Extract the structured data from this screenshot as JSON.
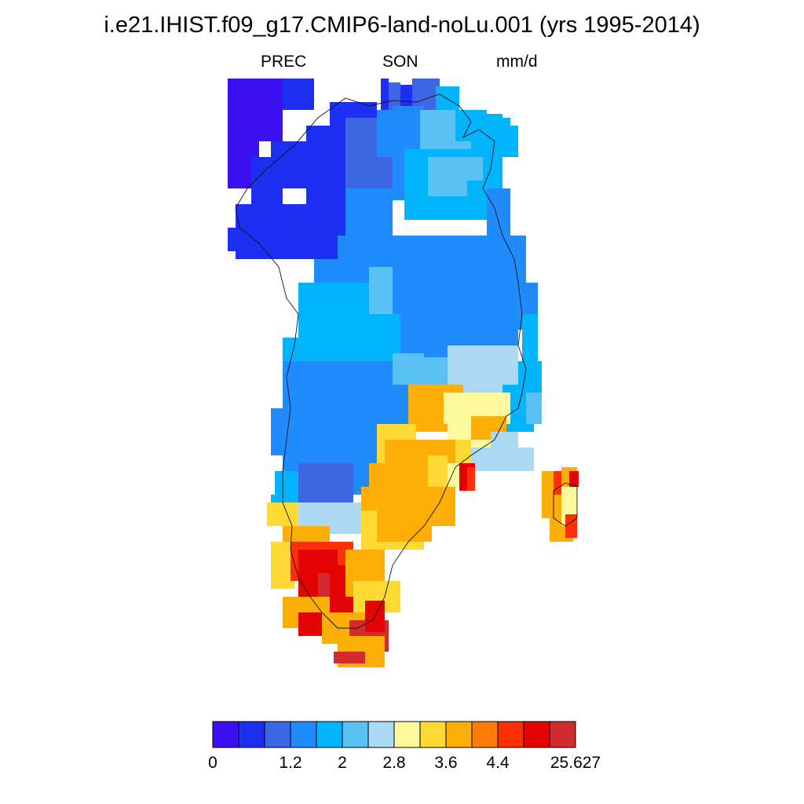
{
  "title": "i.e21.IHIST.f09_g17.CMIP6-land-noLu.001 (yrs 1995-2014)",
  "subtitle": {
    "variable": "PREC",
    "season": "SON",
    "units": "mm/d"
  },
  "colorbar": {
    "colors": [
      "#3a0ff0",
      "#1c2ff2",
      "#3d67e2",
      "#1f8bfd",
      "#02b4fc",
      "#59c1f4",
      "#aad9f1",
      "#fef89d",
      "#ffda34",
      "#fdae07",
      "#fd7b06",
      "#fd2f05",
      "#e30302",
      "#d32a2f"
    ],
    "tick_labels": [
      "0",
      "1.2",
      "2",
      "2.8",
      "3.6",
      "4.4",
      "25.627"
    ]
  },
  "map_data": {
    "region": "Greenland",
    "bins_by_zone": [
      {
        "zone": "north-west",
        "bin": 1
      },
      {
        "zone": "north",
        "bin": 2
      },
      {
        "zone": "north-east",
        "bin": 4
      },
      {
        "zone": "central",
        "bin": 3
      },
      {
        "zone": "central-west",
        "bin": 4
      },
      {
        "zone": "south-east coast",
        "bin": 9
      },
      {
        "zone": "south-west",
        "bin": 3
      },
      {
        "zone": "southern tip",
        "bin": 12
      },
      {
        "zone": "Iceland",
        "bin": 10
      }
    ]
  }
}
